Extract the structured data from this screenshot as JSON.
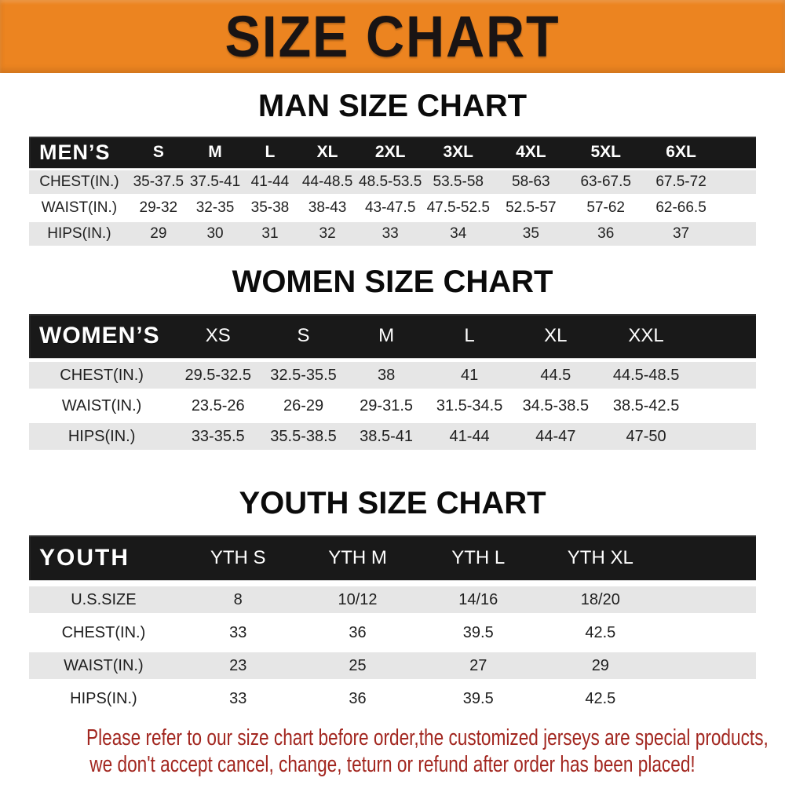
{
  "banner": {
    "title": "SIZE CHART",
    "bg_color": "#EC8420",
    "text_color": "#191414"
  },
  "sections": [
    {
      "id": "men",
      "heading": "MAN SIZE CHART",
      "header_label": "MEN’S",
      "columns": [
        "S",
        "M",
        "L",
        "XL",
        "2XL",
        "3XL",
        "4XL",
        "5XL",
        "6XL"
      ],
      "rows": [
        {
          "label": "CHEST(IN.)",
          "values": [
            "35-37.5",
            "37.5-41",
            "41-44",
            "44-48.5",
            "48.5-53.5",
            "53.5-58",
            "58-63",
            "63-67.5",
            "67.5-72"
          ]
        },
        {
          "label": "WAIST(IN.)",
          "values": [
            "29-32",
            "32-35",
            "35-38",
            "38-43",
            "43-47.5",
            "47.5-52.5",
            "52.5-57",
            "57-62",
            "62-66.5"
          ]
        },
        {
          "label": "HIPS(IN.)",
          "values": [
            "29",
            "30",
            "31",
            "32",
            "33",
            "34",
            "35",
            "36",
            "37"
          ]
        }
      ]
    },
    {
      "id": "women",
      "heading": "WOMEN SIZE CHART",
      "header_label": "WOMEN’S",
      "columns": [
        "XS",
        "S",
        "M",
        "L",
        "XL",
        "XXL"
      ],
      "rows": [
        {
          "label": "CHEST(IN.)",
          "values": [
            "29.5-32.5",
            "32.5-35.5",
            "38",
            "41",
            "44.5",
            "44.5-48.5"
          ]
        },
        {
          "label": "WAIST(IN.)",
          "values": [
            "23.5-26",
            "26-29",
            "29-31.5",
            "31.5-34.5",
            "34.5-38.5",
            "38.5-42.5"
          ]
        },
        {
          "label": "HIPS(IN.)",
          "values": [
            "33-35.5",
            "35.5-38.5",
            "38.5-41",
            "41-44",
            "44-47",
            "47-50"
          ]
        }
      ]
    },
    {
      "id": "youth",
      "heading": "YOUTH SIZE CHART",
      "header_label": "YOUTH",
      "columns": [
        "YTH S",
        "YTH M",
        "YTH L",
        "YTH XL"
      ],
      "rows": [
        {
          "label": "U.S.SIZE",
          "values": [
            "8",
            "10/12",
            "14/16",
            "18/20"
          ]
        },
        {
          "label": "CHEST(IN.)",
          "values": [
            "33",
            "36",
            "39.5",
            "42.5"
          ]
        },
        {
          "label": "WAIST(IN.)",
          "values": [
            "23",
            "25",
            "27",
            "29"
          ]
        },
        {
          "label": "HIPS(IN.)",
          "values": [
            "33",
            "36",
            "39.5",
            "42.5"
          ]
        }
      ]
    }
  ],
  "footer": {
    "line1": "Please refer to our size chart before order,the customized jerseys are special products,",
    "line2": "we don't accept cancel, change, teturn or refund after order has been placed!",
    "text_color": "#A2261F"
  },
  "chart_data": [
    {
      "type": "table",
      "title": "MAN SIZE CHART",
      "columns": [
        "MEN’S",
        "S",
        "M",
        "L",
        "XL",
        "2XL",
        "3XL",
        "4XL",
        "5XL",
        "6XL"
      ],
      "rows": [
        [
          "CHEST(IN.)",
          "35-37.5",
          "37.5-41",
          "41-44",
          "44-48.5",
          "48.5-53.5",
          "53.5-58",
          "58-63",
          "63-67.5",
          "67.5-72"
        ],
        [
          "WAIST(IN.)",
          "29-32",
          "32-35",
          "35-38",
          "38-43",
          "43-47.5",
          "47.5-52.5",
          "52.5-57",
          "57-62",
          "62-66.5"
        ],
        [
          "HIPS(IN.)",
          "29",
          "30",
          "31",
          "32",
          "33",
          "34",
          "35",
          "36",
          "37"
        ]
      ]
    },
    {
      "type": "table",
      "title": "WOMEN SIZE CHART",
      "columns": [
        "WOMEN’S",
        "XS",
        "S",
        "M",
        "L",
        "XL",
        "XXL"
      ],
      "rows": [
        [
          "CHEST(IN.)",
          "29.5-32.5",
          "32.5-35.5",
          "38",
          "41",
          "44.5",
          "44.5-48.5"
        ],
        [
          "WAIST(IN.)",
          "23.5-26",
          "26-29",
          "29-31.5",
          "31.5-34.5",
          "34.5-38.5",
          "38.5-42.5"
        ],
        [
          "HIPS(IN.)",
          "33-35.5",
          "35.5-38.5",
          "38.5-41",
          "41-44",
          "44-47",
          "47-50"
        ]
      ]
    },
    {
      "type": "table",
      "title": "YOUTH SIZE CHART",
      "columns": [
        "YOUTH",
        "YTH S",
        "YTH M",
        "YTH L",
        "YTH XL"
      ],
      "rows": [
        [
          "U.S.SIZE",
          "8",
          "10/12",
          "14/16",
          "18/20"
        ],
        [
          "CHEST(IN.)",
          "33",
          "36",
          "39.5",
          "42.5"
        ],
        [
          "WAIST(IN.)",
          "23",
          "25",
          "27",
          "29"
        ],
        [
          "HIPS(IN.)",
          "33",
          "36",
          "39.5",
          "42.5"
        ]
      ]
    }
  ]
}
